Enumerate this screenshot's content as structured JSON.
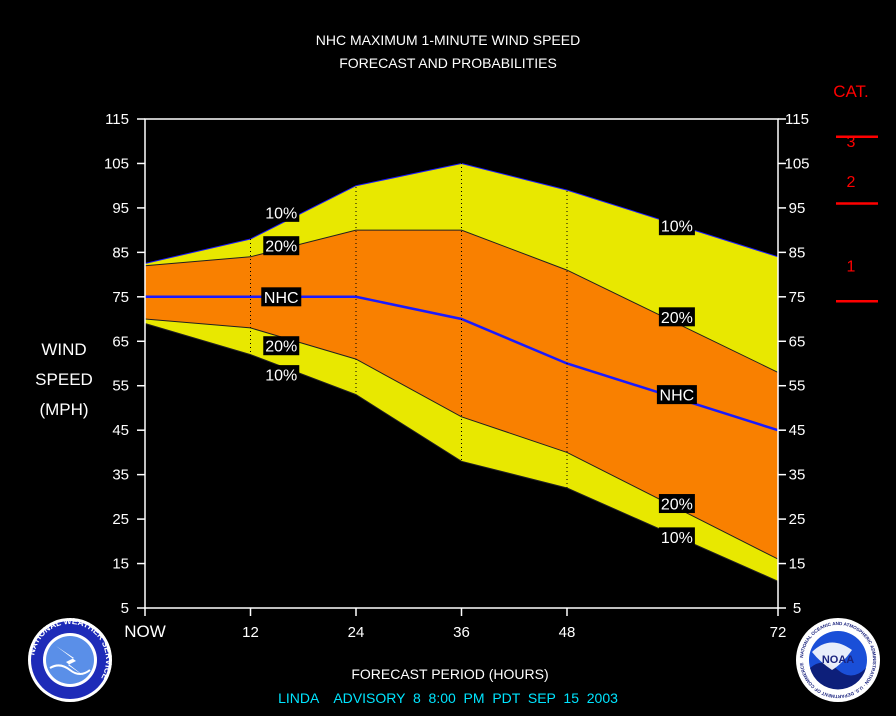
{
  "title": {
    "line1": "NHC MAXIMUM 1-MINUTE WIND SPEED",
    "line2": "FORECAST AND PROBABILITIES"
  },
  "ylabel": [
    "WIND",
    "SPEED",
    "(MPH)"
  ],
  "xlabel": "FORECAST PERIOD (HOURS)",
  "footer": "LINDA    ADVISORY  8  8:00  PM  PDT  SEP  15  2003",
  "category_scale": {
    "heading": "CAT.",
    "labels": [
      {
        "text": "3",
        "y": 110
      },
      {
        "text": "2",
        "y": 101
      },
      {
        "text": "1",
        "y": 82
      }
    ],
    "thresholds": [
      111,
      96,
      74
    ]
  },
  "colors": {
    "band_10": "#e8e800",
    "band_20": "#f98000",
    "nhc_line": "#1a1aff",
    "category": "#ff0000",
    "footer": "#00e5ff"
  },
  "logos": {
    "left": "nws-logo",
    "left_text": "NATIONAL WEATHER SERVICE",
    "right": "noaa-logo",
    "right_text": "NOAA",
    "right_ring_text": "NATIONAL OCEANIC AND ATMOSPHERIC ADMINISTRATION · U.S. DEPARTMENT OF COMMERCE"
  },
  "chart_data": {
    "type": "area",
    "xlim": [
      0,
      72
    ],
    "ylim": [
      5,
      115
    ],
    "x_ticks": [
      {
        "value": 0,
        "label": "NOW"
      },
      {
        "value": 12,
        "label": "12"
      },
      {
        "value": 24,
        "label": "24"
      },
      {
        "value": 36,
        "label": "36"
      },
      {
        "value": 48,
        "label": "48"
      },
      {
        "value": 72,
        "label": "72"
      }
    ],
    "y_ticks": [
      5,
      15,
      25,
      35,
      45,
      55,
      65,
      75,
      85,
      95,
      105,
      115
    ],
    "vertical_grid_x": [
      12,
      24,
      36,
      48
    ],
    "series": [
      {
        "name": "10%",
        "x": [
          0,
          12,
          24,
          36,
          48,
          72
        ],
        "values": [
          82.5,
          88,
          100,
          105,
          99,
          84
        ]
      },
      {
        "name": "20%",
        "x": [
          0,
          12,
          24,
          36,
          48,
          72
        ],
        "values": [
          82,
          84,
          90,
          90,
          81,
          58
        ]
      },
      {
        "name": "NHC",
        "x": [
          0,
          12,
          24,
          36,
          48,
          72
        ],
        "values": [
          75,
          75,
          75,
          70,
          60,
          45
        ]
      },
      {
        "name": "20%",
        "x": [
          0,
          12,
          24,
          36,
          48,
          72
        ],
        "values": [
          70,
          68,
          61,
          48,
          40,
          16
        ]
      },
      {
        "name": "10%",
        "x": [
          0,
          12,
          24,
          36,
          48,
          72
        ],
        "values": [
          69,
          62,
          53,
          38,
          32,
          11
        ]
      }
    ],
    "labels": [
      {
        "text": "10%",
        "x": 15.5,
        "y": 94
      },
      {
        "text": "20%",
        "x": 15.5,
        "y": 86.5
      },
      {
        "text": "NHC",
        "x": 15.5,
        "y": 75
      },
      {
        "text": "20%",
        "x": 15.5,
        "y": 64
      },
      {
        "text": "10%",
        "x": 15.5,
        "y": 57.5
      },
      {
        "text": "10%",
        "x": 60.5,
        "y": 91
      },
      {
        "text": "20%",
        "x": 60.5,
        "y": 70.5
      },
      {
        "text": "NHC",
        "x": 60.5,
        "y": 53
      },
      {
        "text": "20%",
        "x": 60.5,
        "y": 28.5
      },
      {
        "text": "10%",
        "x": 60.5,
        "y": 21
      }
    ]
  }
}
